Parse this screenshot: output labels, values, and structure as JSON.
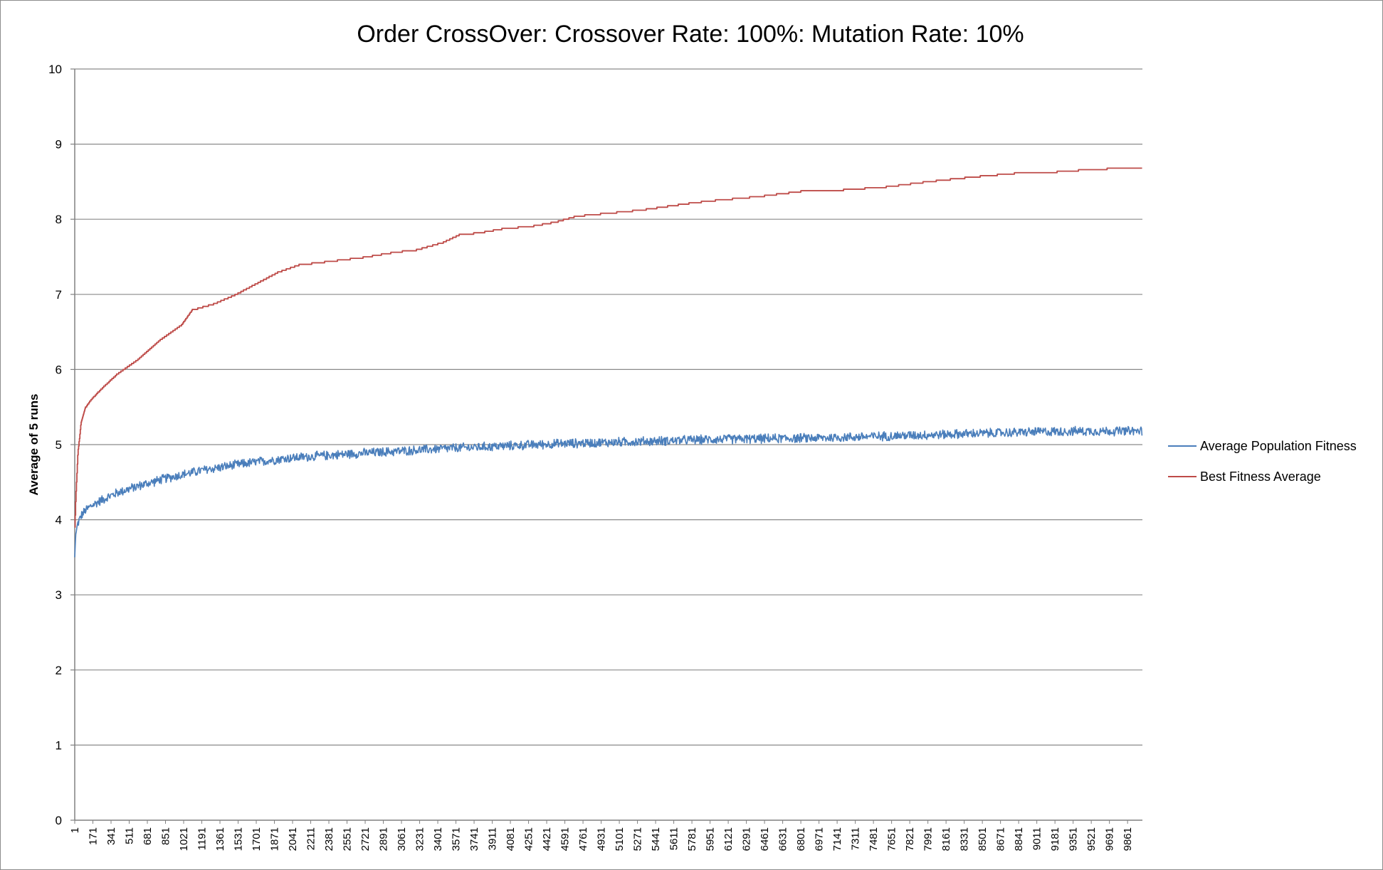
{
  "chart_data": {
    "type": "line",
    "title": "Order CrossOver: Crossover Rate: 100%: Mutation Rate: 10%",
    "xlabel": "",
    "ylabel": "Average of 5 runs",
    "ylim": [
      0,
      10
    ],
    "yticks": [
      "0",
      "1",
      "2",
      "3",
      "4",
      "5",
      "6",
      "7",
      "8",
      "9",
      "10"
    ],
    "xlim": [
      1,
      10000
    ],
    "xticks": [
      "1",
      "171",
      "341",
      "511",
      "681",
      "851",
      "1021",
      "1191",
      "1361",
      "1531",
      "1701",
      "1871",
      "2041",
      "2211",
      "2381",
      "2551",
      "2721",
      "2891",
      "3061",
      "3231",
      "3401",
      "3571",
      "3741",
      "3911",
      "4081",
      "4251",
      "4421",
      "4591",
      "4761",
      "4931",
      "5101",
      "5271",
      "5441",
      "5611",
      "5781",
      "5951",
      "6121",
      "6291",
      "6461",
      "6631",
      "6801",
      "6971",
      "7141",
      "7311",
      "7481",
      "7651",
      "7821",
      "7991",
      "8161",
      "8331",
      "8501",
      "8671",
      "8841",
      "9011",
      "9181",
      "9351",
      "9521",
      "9691",
      "9861"
    ],
    "grid": "horizontal",
    "legend_position": "right",
    "series": [
      {
        "name": "Average Population Fitness",
        "color": "#4a7ebb",
        "noise": 0.07,
        "x": [
          1,
          10,
          30,
          60,
          100,
          150,
          250,
          400,
          600,
          850,
          1200,
          1600,
          2000,
          2500,
          3000,
          3500,
          4000,
          4500,
          5000,
          5500,
          6000,
          6500,
          7000,
          7500,
          8000,
          8500,
          9000,
          9500,
          10000
        ],
        "values": [
          3.5,
          3.8,
          3.95,
          4.05,
          4.12,
          4.18,
          4.26,
          4.36,
          4.45,
          4.55,
          4.66,
          4.75,
          4.82,
          4.87,
          4.91,
          4.95,
          4.98,
          5.01,
          5.03,
          5.05,
          5.07,
          5.08,
          5.09,
          5.11,
          5.13,
          5.15,
          5.17,
          5.18,
          5.18
        ]
      },
      {
        "name": "Best Fitness Average",
        "color": "#be4b48",
        "x": [
          1,
          10,
          30,
          60,
          100,
          150,
          250,
          400,
          600,
          800,
          1000,
          1100,
          1300,
          1500,
          1700,
          1900,
          2100,
          2400,
          2700,
          3000,
          3200,
          3450,
          3600,
          3800,
          4000,
          4300,
          4500,
          4700,
          5000,
          5300,
          5500,
          5800,
          6000,
          6400,
          6800,
          7200,
          7600,
          8000,
          8400,
          8800,
          9200,
          9500,
          10000
        ],
        "values": [
          3.9,
          4.3,
          4.9,
          5.3,
          5.5,
          5.6,
          5.75,
          5.95,
          6.15,
          6.4,
          6.6,
          6.8,
          6.88,
          7.0,
          7.15,
          7.3,
          7.4,
          7.45,
          7.5,
          7.57,
          7.6,
          7.7,
          7.8,
          7.83,
          7.88,
          7.92,
          7.97,
          8.05,
          8.09,
          8.13,
          8.17,
          8.23,
          8.26,
          8.31,
          8.38,
          8.4,
          8.44,
          8.51,
          8.57,
          8.62,
          8.64,
          8.67,
          8.7
        ]
      }
    ]
  }
}
